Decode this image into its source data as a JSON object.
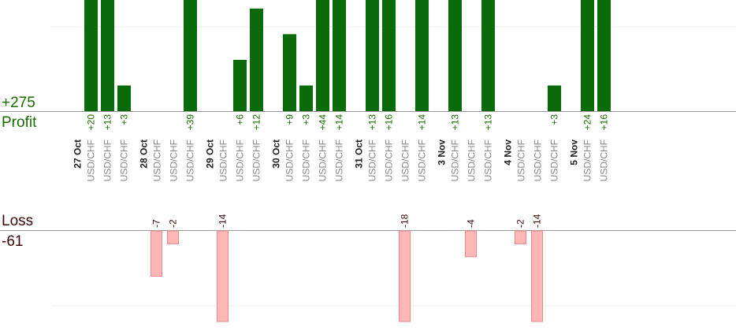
{
  "summary": {
    "profit_total": "+275",
    "profit_label": "Profit",
    "loss_label": "Loss",
    "loss_total": "-61"
  },
  "colors": {
    "profit_bar": "#0b6b0b",
    "profit_text": "#1a6b00",
    "loss_bar": "#ffb6b6",
    "loss_stroke": "#e58a8a",
    "loss_text": "#3a0a0a",
    "axis_line": "#999999",
    "grid_line": "#eeeeee",
    "date_text": "#222222",
    "pair_text": "#888888"
  },
  "chart_data": {
    "type": "bar",
    "pair_label": "USD/CHF",
    "groups": [
      {
        "date": "27 Oct",
        "trades": [
          20,
          13,
          3
        ]
      },
      {
        "date": "28 Oct",
        "trades": [
          -7,
          -2,
          39
        ]
      },
      {
        "date": "29 Oct",
        "trades": [
          -14,
          6,
          12
        ]
      },
      {
        "date": "30 Oct",
        "trades": [
          9,
          3,
          44,
          14
        ]
      },
      {
        "date": "31 Oct",
        "trades": [
          13,
          16,
          -18,
          14
        ]
      },
      {
        "date": "3 Nov",
        "trades": [
          13,
          -4,
          13
        ]
      },
      {
        "date": "4 Nov",
        "trades": [
          -2,
          -14,
          3
        ]
      },
      {
        "date": "5 Nov",
        "trades": [
          24,
          16
        ]
      }
    ],
    "profit_axis_max": 13,
    "loss_axis_max": 14,
    "grid": true
  }
}
